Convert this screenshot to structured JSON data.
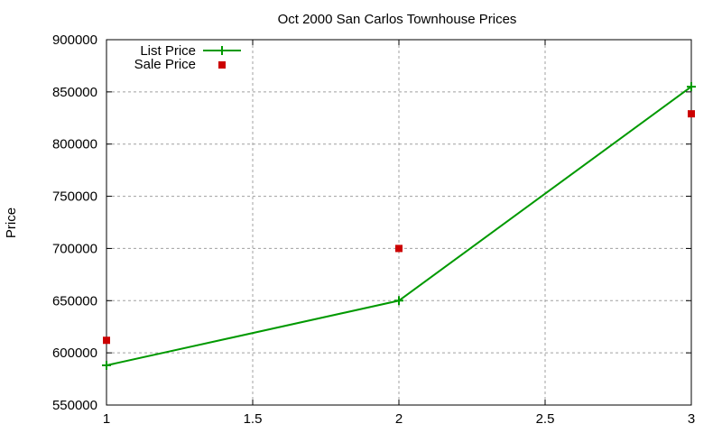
{
  "chart_data": {
    "type": "line",
    "title": "Oct 2000 San Carlos Townhouse Prices",
    "xlabel": "",
    "ylabel": "Price",
    "xlim": [
      1,
      3
    ],
    "ylim": [
      550000,
      900000
    ],
    "x_ticks": [
      "1",
      "1.5",
      "2",
      "2.5",
      "3"
    ],
    "y_ticks": [
      "550000",
      "600000",
      "650000",
      "700000",
      "750000",
      "800000",
      "850000",
      "900000"
    ],
    "grid": true,
    "legend_position": "top-left",
    "series": [
      {
        "name": "List Price",
        "style": "linespoints",
        "color": "#009900",
        "x": [
          1,
          2,
          3
        ],
        "values": [
          588000,
          650000,
          855000
        ]
      },
      {
        "name": "Sale Price",
        "style": "points",
        "color": "#cc0000",
        "x": [
          1,
          2,
          3
        ],
        "values": [
          612000,
          700000,
          829000
        ]
      }
    ]
  }
}
